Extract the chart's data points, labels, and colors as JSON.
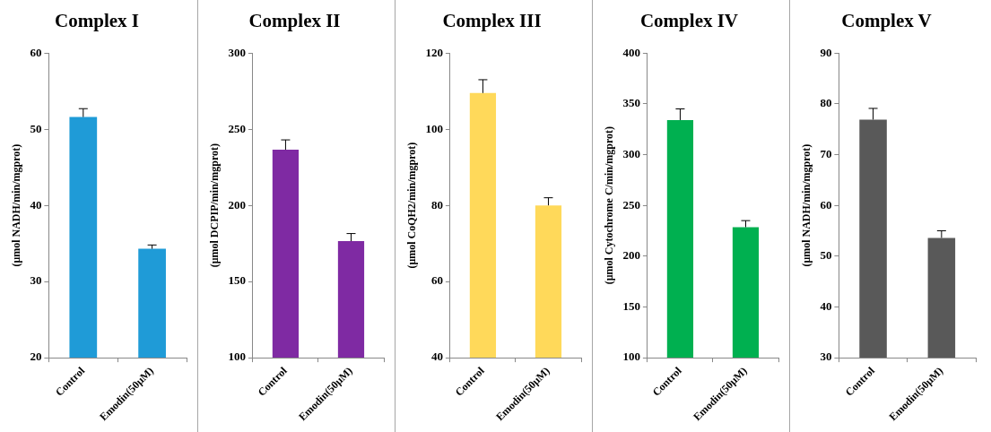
{
  "chart_data": [
    {
      "type": "bar",
      "title": "Complex I",
      "ylabel": "(μmol NADH/min/mgprot)",
      "categories": [
        "Control",
        "Emodin(50μM)"
      ],
      "values": [
        51.6,
        34.3
      ],
      "errors": [
        [
          51.6,
          52.7
        ],
        [
          34.3,
          34.8
        ]
      ],
      "color": "#1f9bd7",
      "ylim": [
        20,
        60
      ],
      "yticks": [
        20,
        30,
        40,
        50,
        60
      ]
    },
    {
      "type": "bar",
      "title": "Complex II",
      "ylabel": "(μmol DCPIP/min/mgprot)",
      "categories": [
        "Control",
        "Emodin(50μM)"
      ],
      "values": [
        236.5,
        176.5
      ],
      "errors": [
        [
          236.5,
          243
        ],
        [
          176.5,
          181.5
        ]
      ],
      "color": "#7f2aa3",
      "ylim": [
        100,
        300
      ],
      "yticks": [
        100,
        150,
        200,
        250,
        300
      ]
    },
    {
      "type": "bar",
      "title": "Complex III",
      "ylabel": "(μmol CoQH2/min/mgprot)",
      "categories": [
        "Control",
        "Emodin(50μM)"
      ],
      "values": [
        109.5,
        80
      ],
      "errors": [
        [
          109.5,
          113
        ],
        [
          80,
          82
        ]
      ],
      "color": "#ffd95a",
      "ylim": [
        40,
        120
      ],
      "yticks": [
        40,
        60,
        80,
        100,
        120
      ]
    },
    {
      "type": "bar",
      "title": "Complex IV",
      "ylabel": "(μmol Cytochrome C/min/mgprot)",
      "categories": [
        "Control",
        "Emodin(50μM)"
      ],
      "values": [
        334,
        228.5
      ],
      "errors": [
        [
          334,
          345
        ],
        [
          228.5,
          235
        ]
      ],
      "color": "#00b050",
      "ylim": [
        100,
        400
      ],
      "yticks": [
        100,
        150,
        200,
        250,
        300,
        350,
        400
      ]
    },
    {
      "type": "bar",
      "title": "Complex V",
      "ylabel": "(μmol NADH/min/mgprot)",
      "categories": [
        "Control",
        "Emodin(50μM)"
      ],
      "values": [
        76.9,
        53.6
      ],
      "errors": [
        [
          76.9,
          79.1
        ],
        [
          53.6,
          55
        ]
      ],
      "color": "#595959",
      "ylim": [
        30,
        90
      ],
      "yticks": [
        30,
        40,
        50,
        60,
        70,
        80,
        90
      ]
    }
  ]
}
